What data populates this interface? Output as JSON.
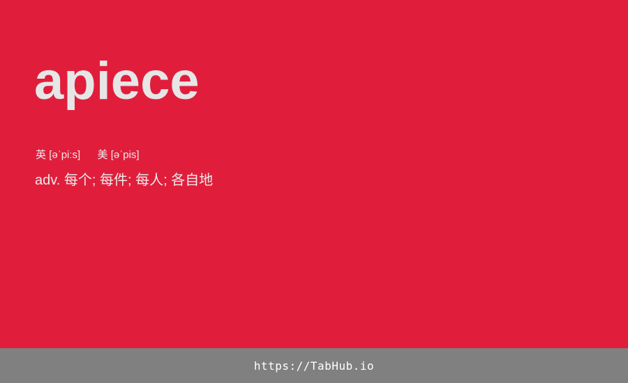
{
  "card": {
    "background_color": "#e01e3c",
    "word": "apiece",
    "phonetics": {
      "uk_label": "英",
      "uk_ipa": "[əˈpiːs]",
      "us_label": "美",
      "us_ipa": "[əˈpis]"
    },
    "definition": "adv. 每个; 每件; 每人; 各自地"
  },
  "footer": {
    "background_color": "#808080",
    "link_text": "https://TabHub.io"
  }
}
